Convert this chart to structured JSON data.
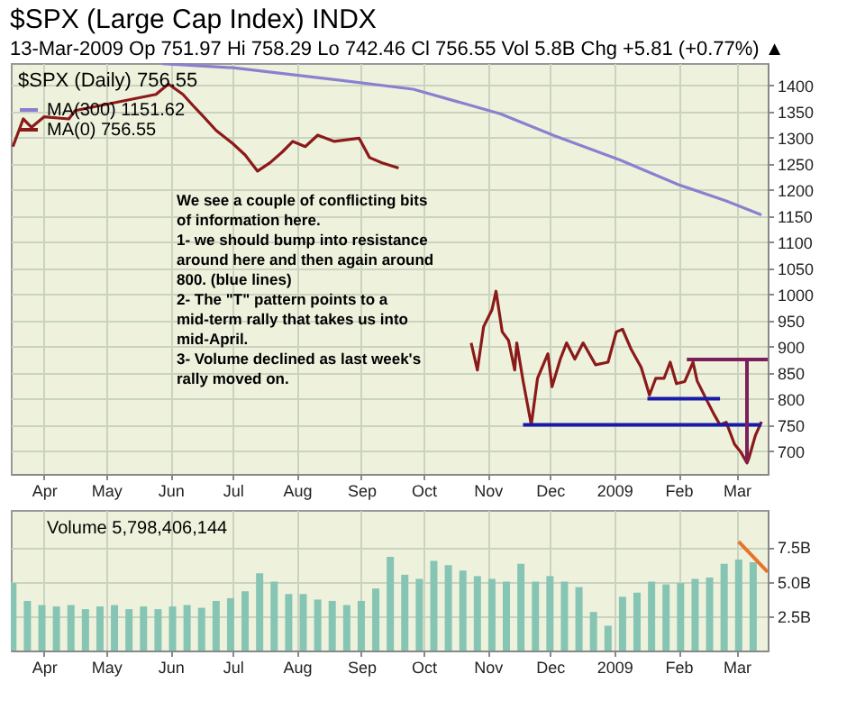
{
  "chart_data": [
    {
      "type": "line",
      "title": "$SPX (Large Cap Index) INDX",
      "subtitle": "13-Mar-2009   Op 751.97  Hi 758.29  Lo 742.46  Cl 756.55  Vol 5.8B  Chg +5.81 (+0.77%) ▲",
      "legend_title": "$SPX (Daily) 756.55",
      "legend": "top left",
      "grid": true,
      "marker": "none",
      "line_style": "solid",
      "xlim": [
        "2008-03-16",
        "2009-03-16"
      ],
      "xticks": [
        {
          "value": "2008-04-01",
          "label": "Apr"
        },
        {
          "value": "2008-05-01",
          "label": "May"
        },
        {
          "value": "2008-06-01",
          "label": "Jun"
        },
        {
          "value": "2008-07-01",
          "label": "Jul"
        },
        {
          "value": "2008-08-01",
          "label": "Aug"
        },
        {
          "value": "2008-09-01",
          "label": "Sep"
        },
        {
          "value": "2008-10-01",
          "label": "Oct"
        },
        {
          "value": "2008-11-01",
          "label": "Nov"
        },
        {
          "value": "2008-12-01",
          "label": "Dec"
        },
        {
          "value": "2009-01-01",
          "label": "2009"
        },
        {
          "value": "2009-02-01",
          "label": "Feb"
        },
        {
          "value": "2009-03-01",
          "label": "Mar"
        }
      ],
      "ylim": [
        656,
        1443
      ],
      "yticks": [
        700,
        750,
        800,
        850,
        900,
        950,
        1000,
        1050,
        1100,
        1150,
        1200,
        1250,
        1300,
        1350,
        1400
      ],
      "annotations": [
        "We see a couple of conflicting bits\nof information here.\n\n1- we should bump into resistance\naround here and then again around\n800. (blue lines)\n\n2- The \"T\" pattern points  to a\nmid-term rally that takes us into\nmid-April.\n\n3- Volume declined as last week's\nrally moved on."
      ],
      "series": [
        {
          "name": "MA(300) 1151.62",
          "color": "#8a80d0",
          "x": [
            "2008-05-28",
            "2008-07-01",
            "2008-08-22",
            "2008-09-26",
            "2008-11-07",
            "2008-12-03",
            "2009-01-04",
            "2009-02-01",
            "2009-02-24",
            "2009-03-13"
          ],
          "values": [
            1442,
            1434,
            1410,
            1393,
            1346,
            1304,
            1257,
            1210,
            1179,
            1152
          ]
        },
        {
          "name": "MA(0) 756.55",
          "color": "#8b1a1a",
          "x": [
            "2008-03-17",
            "2008-03-22",
            "2008-03-26",
            "2008-04-01",
            "2008-04-13",
            "2008-04-16",
            "2008-05-25",
            "2008-05-28",
            "2008-05-31",
            "2008-06-07",
            "2008-06-12",
            "2008-06-17",
            "2008-06-23",
            "2008-07-01",
            "2008-07-07",
            "2008-07-13",
            "2008-07-19",
            "2008-07-25",
            "2008-07-30",
            "2008-08-05",
            "2008-08-11",
            "2008-08-19",
            "2008-08-31",
            "2008-09-05",
            "2008-09-11",
            "2008-09-19",
            "2008-10-06",
            "2008-10-24",
            "2008-10-27",
            "2008-10-30",
            "2008-11-03",
            "2008-11-05",
            "2008-11-08",
            "2008-11-11",
            "2008-11-14",
            "2008-11-15",
            "2008-11-18",
            "2008-11-22",
            "2008-11-25",
            "2008-11-30",
            "2008-12-02",
            "2008-12-06",
            "2008-12-09",
            "2008-12-13",
            "2008-12-17",
            "2008-12-23",
            "2008-12-29",
            "2009-01-02",
            "2009-01-05",
            "2009-01-09",
            "2009-01-14",
            "2009-01-18",
            "2009-01-21",
            "2009-01-25",
            "2009-01-28",
            "2009-01-31",
            "2009-02-04",
            "2009-02-08",
            "2009-02-10",
            "2009-02-14",
            "2009-02-18",
            "2009-02-21",
            "2009-02-24",
            "2009-02-28",
            "2009-03-03",
            "2009-03-06",
            "2009-03-07",
            "2009-03-10",
            "2009-03-13"
          ],
          "values": [
            1283,
            1336,
            1320,
            1340,
            1336,
            1352,
            1383,
            1393,
            1403,
            1383,
            1361,
            1340,
            1314,
            1289,
            1267,
            1236,
            1252,
            1273,
            1293,
            1283,
            1305,
            1293,
            1299,
            1262,
            1252,
            1242,
            null,
            907,
            855,
            938,
            970,
            1006,
            928,
            912,
            855,
            907,
            835,
            750,
            839,
            886,
            823,
            876,
            907,
            876,
            907,
            865,
            870,
            928,
            933,
            896,
            860,
            807,
            839,
            839,
            870,
            829,
            833,
            870,
            834,
            802,
            771,
            750,
            755,
            713,
            698,
            677,
            687,
            729,
            756
          ]
        },
        {
          "type": "line",
          "color": "#1a1aa8",
          "x": [
            "2008-11-18",
            "2009-03-13"
          ],
          "values": [
            750,
            750
          ]
        },
        {
          "type": "line",
          "color": "#1a1aa8",
          "x": [
            "2009-01-17",
            "2009-02-21"
          ],
          "values": [
            800,
            800
          ]
        },
        {
          "type": "line",
          "color": "#7a1f5c",
          "x": [
            "2009-02-05",
            "2009-03-16"
          ],
          "values": [
            875,
            875
          ]
        },
        {
          "type": "line",
          "color": "#7a1f5c",
          "x": [
            "2009-03-06",
            "2009-03-06"
          ],
          "values": [
            875,
            677
          ]
        }
      ]
    },
    {
      "type": "bar",
      "legend": "top left",
      "grid": true,
      "xlim": [
        "2008-03-16",
        "2009-03-16"
      ],
      "xticks": [
        {
          "value": "2008-04-01",
          "label": "Apr"
        },
        {
          "value": "2008-05-01",
          "label": "May"
        },
        {
          "value": "2008-06-01",
          "label": "Jun"
        },
        {
          "value": "2008-07-01",
          "label": "Jul"
        },
        {
          "value": "2008-08-01",
          "label": "Aug"
        },
        {
          "value": "2008-09-01",
          "label": "Sep"
        },
        {
          "value": "2008-10-01",
          "label": "Oct"
        },
        {
          "value": "2008-11-01",
          "label": "Nov"
        },
        {
          "value": "2008-12-01",
          "label": "Dec"
        },
        {
          "value": "2009-01-01",
          "label": "2009"
        },
        {
          "value": "2009-02-01",
          "label": "Feb"
        },
        {
          "value": "2009-03-01",
          "label": "Mar"
        }
      ],
      "ylim": [
        0,
        10.2
      ],
      "yticks": [
        {
          "value": 2.5,
          "label": "2.5B"
        },
        {
          "value": 5,
          "label": "5.0B"
        },
        {
          "value": 7.5,
          "label": "7.5B"
        }
      ],
      "series": [
        {
          "name": "Volume 5,798,406,144",
          "color": "#86c4b4",
          "x": [
            "2008-03-17",
            "2008-03-24",
            "2008-03-31",
            "2008-04-07",
            "2008-04-14",
            "2008-04-21",
            "2008-04-28",
            "2008-05-05",
            "2008-05-12",
            "2008-05-19",
            "2008-05-26",
            "2008-06-02",
            "2008-06-09",
            "2008-06-16",
            "2008-06-23",
            "2008-06-30",
            "2008-07-07",
            "2008-07-14",
            "2008-07-21",
            "2008-07-28",
            "2008-08-04",
            "2008-08-11",
            "2008-08-18",
            "2008-08-25",
            "2008-09-01",
            "2008-09-08",
            "2008-09-15",
            "2008-09-22",
            "2008-09-29",
            "2008-10-06",
            "2008-10-13",
            "2008-10-20",
            "2008-10-27",
            "2008-11-03",
            "2008-11-10",
            "2008-11-17",
            "2008-11-24",
            "2008-12-01",
            "2008-12-08",
            "2008-12-15",
            "2008-12-22",
            "2008-12-29",
            "2009-01-05",
            "2009-01-12",
            "2009-01-19",
            "2009-01-26",
            "2009-02-02",
            "2009-02-09",
            "2009-02-16",
            "2009-02-23",
            "2009-03-02",
            "2009-03-09"
          ],
          "values": [
            4.9,
            3.6,
            3.3,
            3.2,
            3.3,
            3.0,
            3.2,
            3.3,
            3.0,
            3.2,
            3.0,
            3.2,
            3.3,
            3.1,
            3.6,
            3.8,
            4.3,
            5.6,
            5.0,
            4.1,
            4.1,
            3.7,
            3.6,
            3.3,
            3.6,
            4.5,
            6.8,
            5.5,
            5.2,
            6.5,
            6.2,
            5.8,
            5.4,
            5.2,
            5.0,
            6.3,
            5.0,
            5.4,
            5.0,
            4.6,
            2.8,
            1.8,
            3.9,
            4.2,
            5.0,
            4.8,
            4.9,
            5.2,
            5.3,
            6.3,
            6.6,
            6.4
          ]
        },
        {
          "type": "line",
          "color": "#e8742a",
          "x": [
            "2009-03-02",
            "2009-03-16"
          ],
          "values": [
            7.9,
            5.7
          ]
        }
      ]
    }
  ]
}
